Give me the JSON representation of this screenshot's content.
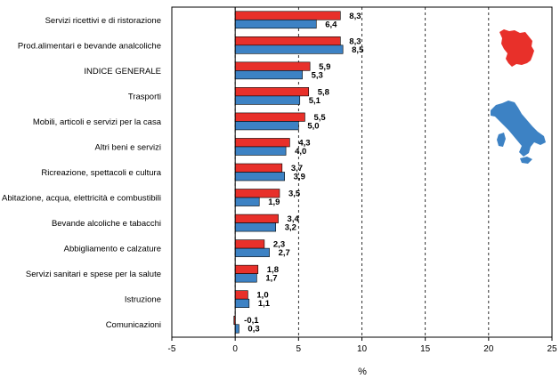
{
  "chart_data": {
    "type": "bar",
    "orientation": "horizontal",
    "categories": [
      "Servizi ricettivi e di ristorazione",
      "Prod.alimentari e bevande analcoliche",
      "INDICE GENERALE",
      "Trasporti",
      "Mobili, articoli e servizi per la casa",
      "Altri beni e servizi",
      "Ricreazione, spettacoli e cultura",
      "Abitazione, acqua, elettricità e combustibili",
      "Bevande alcoliche e tabacchi",
      "Abbigliamento e calzature",
      "Servizi sanitari e spese per la salute",
      "Istruzione",
      "Comunicazioni"
    ],
    "series": [
      {
        "name": "Toscana",
        "color": "#e8302a",
        "values": [
          8.3,
          8.3,
          5.9,
          5.8,
          5.5,
          4.3,
          3.7,
          3.5,
          3.4,
          2.3,
          1.8,
          1.0,
          -0.1
        ],
        "labels": [
          "8,3",
          "8,3",
          "5,9",
          "5,8",
          "5,5",
          "4,3",
          "3,7",
          "3,5",
          "3,4",
          "2,3",
          "1,8",
          "1,0",
          "-0,1"
        ]
      },
      {
        "name": "Italia",
        "color": "#3d82c4",
        "values": [
          6.4,
          8.5,
          5.3,
          5.1,
          5.0,
          4.0,
          3.9,
          1.9,
          3.2,
          2.7,
          1.7,
          1.1,
          0.3
        ],
        "labels": [
          "6,4",
          "8,5",
          "5,3",
          "5,1",
          "5,0",
          "4,0",
          "3,9",
          "1,9",
          "3,2",
          "2,7",
          "1,7",
          "1,1",
          "0,3"
        ]
      }
    ],
    "xlim": [
      -5,
      25
    ],
    "xticks": [
      -5,
      0,
      5,
      10,
      15,
      20,
      25
    ],
    "xlabel": "%",
    "gridlines": "dashed vertical",
    "legend": "map icons at right (red Toscana, blue Italia)"
  }
}
